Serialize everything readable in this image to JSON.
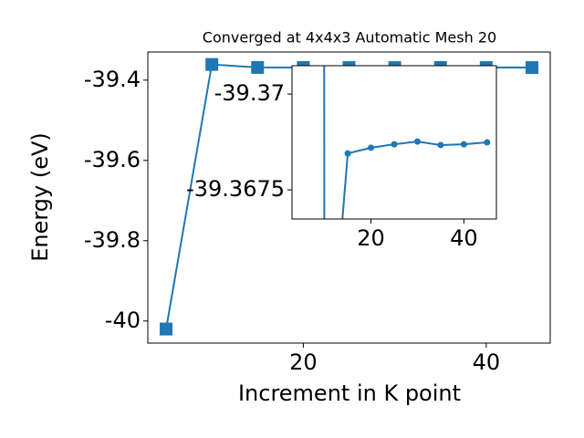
{
  "chart_data": {
    "type": "line",
    "title": "Converged at 4x4x3 Automatic Mesh 20",
    "x_label": "Increment in K point",
    "y_label": "Energy (eV)",
    "x": [
      5,
      10,
      15,
      20,
      25,
      30,
      35,
      40,
      45
    ],
    "series": [
      {
        "color": "#1f77b4",
        "values": [
          -40.02,
          -39.361,
          -39.36845,
          -39.3686,
          -39.36869,
          -39.36876,
          -39.36867,
          -39.36869,
          -39.36874
        ]
      }
    ],
    "xlim": [
      3,
      47
    ],
    "xticks": [
      20,
      40
    ],
    "ylim": [
      -40.055,
      -39.33
    ],
    "yticks": [
      -40.0,
      -39.8,
      -39.6,
      -39.4
    ],
    "inset": {
      "xlim": [
        3,
        47
      ],
      "xticks": [
        20,
        40
      ],
      "ylim": [
        -39.36674,
        -39.37074
      ],
      "yticks": [
        -39.3675,
        -39.37
      ]
    }
  }
}
